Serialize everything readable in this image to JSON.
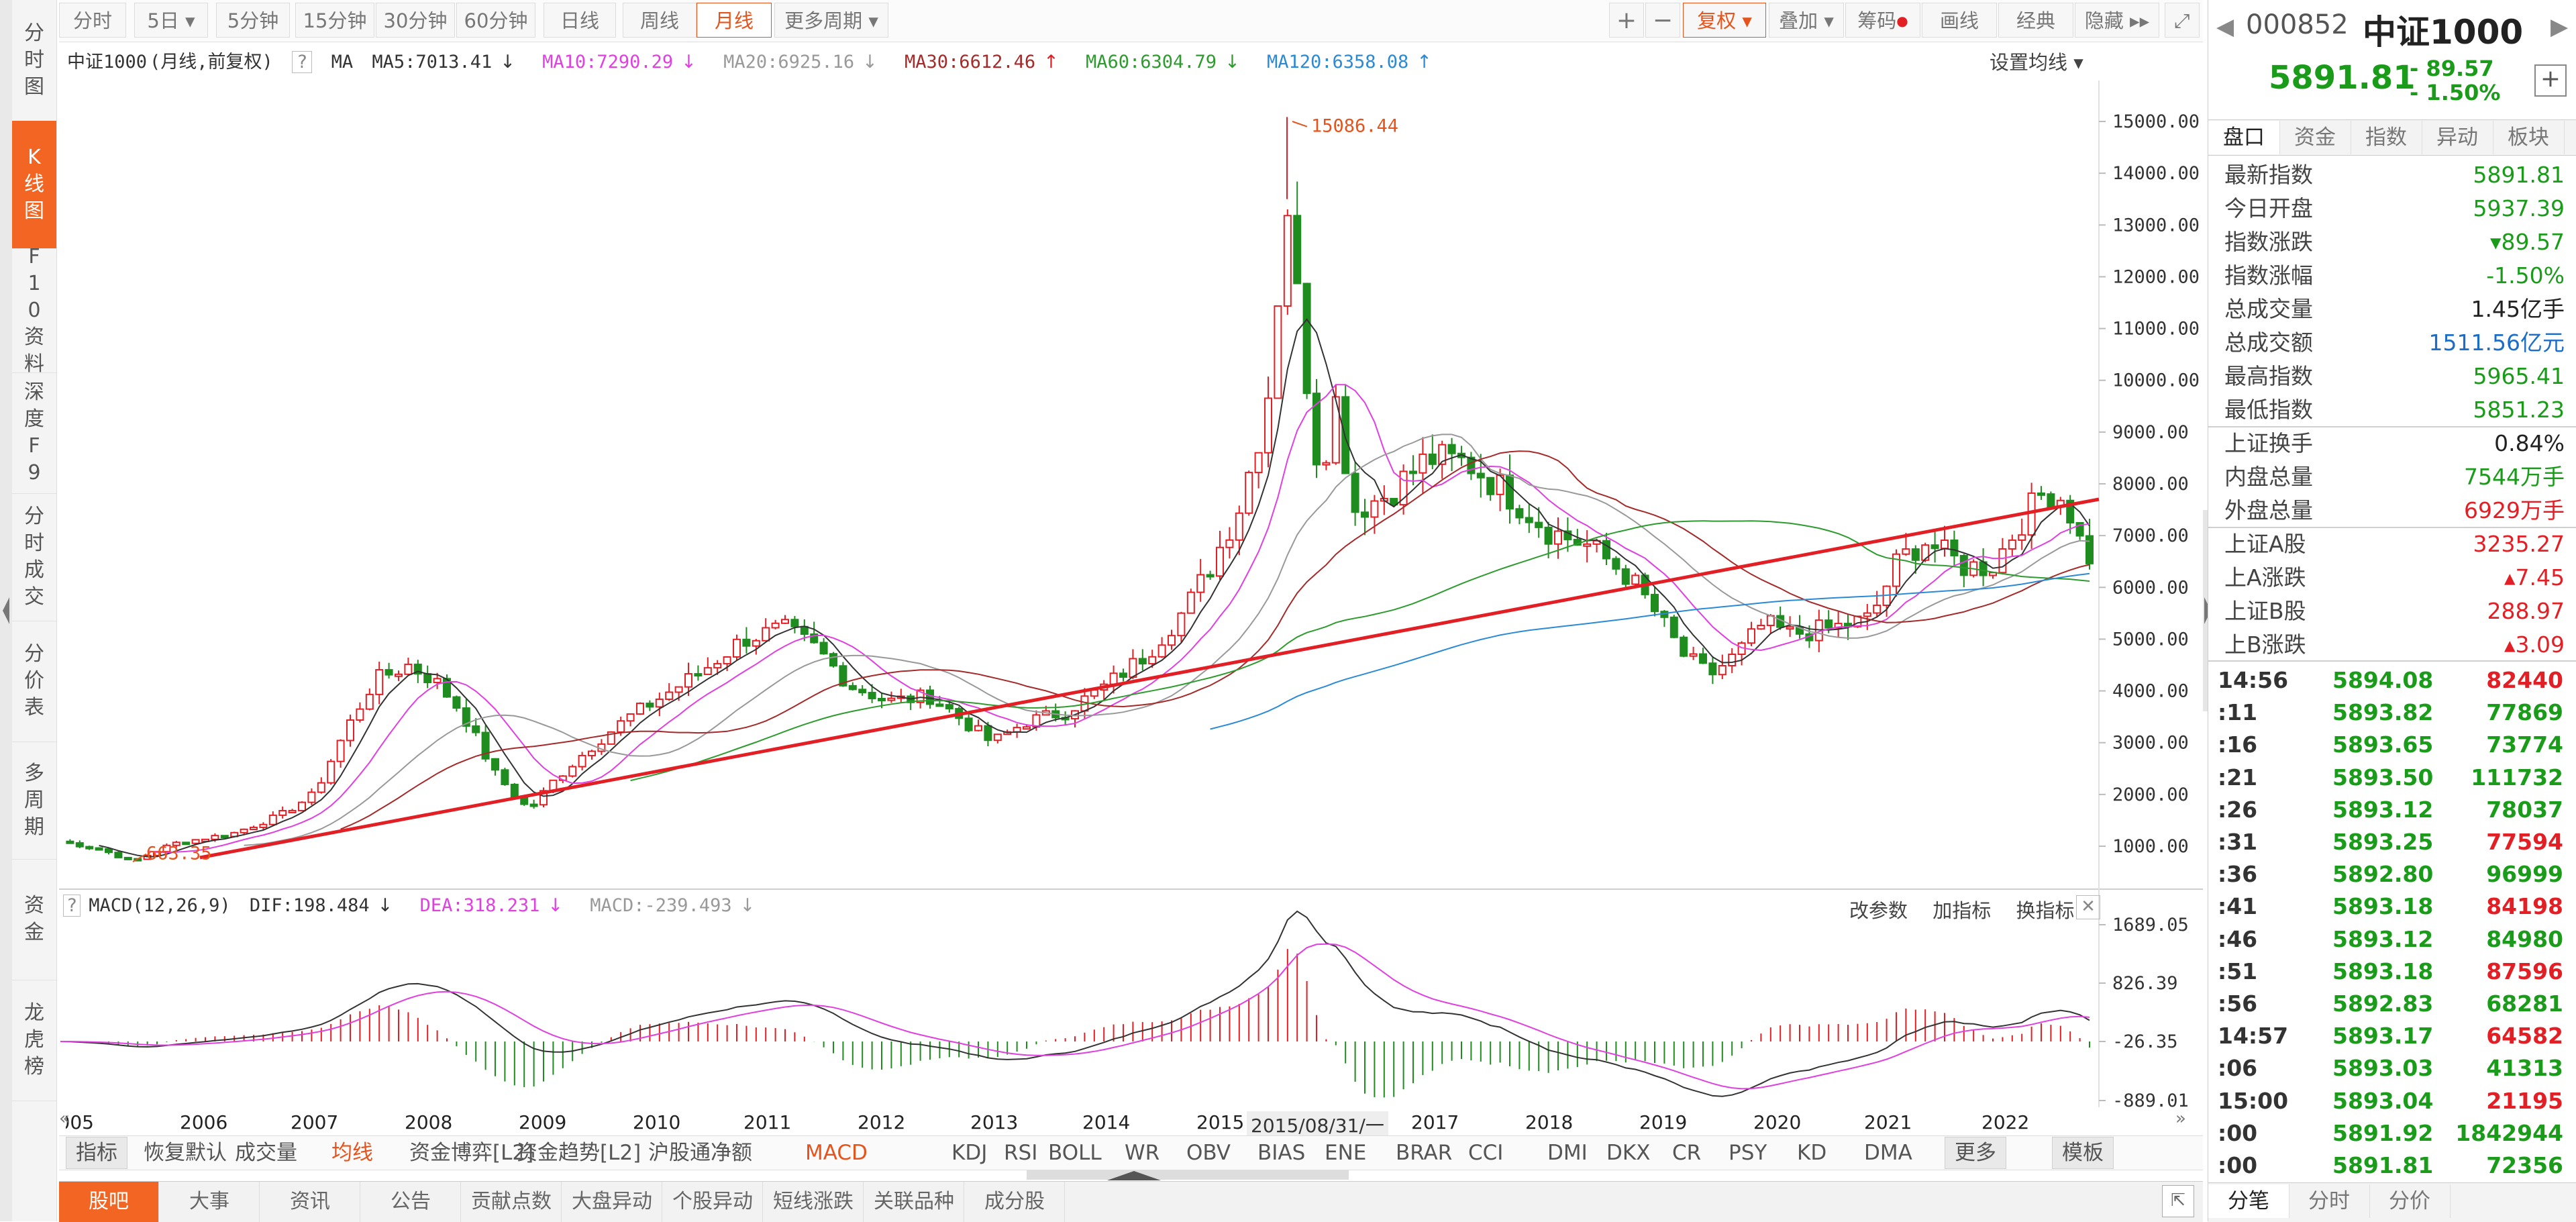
{
  "left_tabs": [
    {
      "label": "分时图",
      "active": false
    },
    {
      "label": "K线图",
      "active": true
    },
    {
      "label": "F10资料",
      "active": false
    },
    {
      "label": "深度F9",
      "active": false
    },
    {
      "label": "分时成交",
      "active": false
    },
    {
      "label": "分价表",
      "active": false
    },
    {
      "label": "多周期",
      "active": false
    },
    {
      "label": "资金",
      "active": false
    },
    {
      "label": "龙虎榜",
      "active": false
    }
  ],
  "toolbar": {
    "periods": [
      "分时",
      "5日",
      "5分钟",
      "15分钟",
      "30分钟",
      "60分钟",
      "日线",
      "周线",
      "月线",
      "更多周期"
    ],
    "active_period": "月线",
    "right": [
      "+",
      "−",
      "复权",
      "叠加",
      "筹码",
      "画线",
      "经典",
      "隐藏"
    ]
  },
  "info": {
    "name": "中证1000",
    "mode": "(月线,前复权)",
    "help": "?",
    "ma_label": "MA",
    "ma5": "MA5:7013.41",
    "ma10": "MA10:7290.29",
    "ma20": "MA20:6925.16",
    "ma30": "MA30:6612.46",
    "ma60": "MA60:6304.79",
    "ma120": "MA120:6358.08",
    "settings": "设置均线"
  },
  "colors": {
    "ma5": "#333333",
    "ma10": "#e040e0",
    "ma20": "#999999",
    "ma30": "#a52a2a",
    "ma60": "#2e9b2e",
    "ma120": "#2b8ad6",
    "up": "#e21f25",
    "down": "#1e8c1e",
    "trend": "#e21f25",
    "accent": "#f26522"
  },
  "chart_data": {
    "type": "candlestick",
    "price_axis_ticks": [
      "15000.00",
      "14000.00",
      "13000.00",
      "12000.00",
      "11000.00",
      "10000.00",
      "9000.00",
      "8000.00",
      "7000.00",
      "6000.00",
      "5000.00",
      "4000.00",
      "3000.00",
      "2000.00",
      "1000.00"
    ],
    "ylim": [
      500,
      15500
    ],
    "annotations": {
      "high": "15086.44",
      "low": "663.35"
    },
    "x_labels": [
      "2005",
      "2006",
      "2007",
      "2008",
      "2009",
      "2010",
      "2011",
      "2012",
      "2013",
      "2014",
      "2015",
      "2015/08/31/一",
      "2017",
      "2018",
      "2019",
      "2020",
      "2021",
      "2022"
    ],
    "macd": {
      "header": "MACD(12,26,9)",
      "dif": "DIF:198.484",
      "dea": "DEA:318.231",
      "macd": "MACD:-239.493",
      "ticks": [
        "1689.05",
        "826.39",
        "-26.35",
        "-889.01"
      ],
      "buttons": [
        "改参数",
        "加指标",
        "换指标"
      ]
    }
  },
  "indicator_tabs": [
    "指标",
    "恢复默认",
    "成交量",
    "均线",
    "资金博弈[L2]",
    "资金趋势[L2]",
    "沪股通净额",
    "MACD",
    "KDJ",
    "RSI",
    "BOLL",
    "WR",
    "OBV",
    "BIAS",
    "ENE",
    "BRAR",
    "CCI",
    "DMI",
    "DKX",
    "CR",
    "PSY",
    "KD",
    "DMA",
    "更多",
    "模板"
  ],
  "bottom_tabs": [
    "股吧",
    "大事",
    "资讯",
    "公告",
    "贡献点数",
    "大盘异动",
    "个股异动",
    "短线涨跌",
    "关联品种",
    "成分股"
  ],
  "quote": {
    "code": "000852",
    "name": "中证1000",
    "price": "5891.81",
    "change": "- 89.57",
    "pct": "- 1.50%",
    "tabs": [
      "盘口",
      "资金",
      "指数",
      "异动",
      "板块"
    ],
    "rows": [
      {
        "k": "最新指数",
        "v": "5891.81",
        "c": "green"
      },
      {
        "k": "今日开盘",
        "v": "5937.39",
        "c": "green"
      },
      {
        "k": "指数涨跌",
        "v": "▾89.57",
        "c": "green"
      },
      {
        "k": "指数涨幅",
        "v": "-1.50%",
        "c": "green"
      },
      {
        "k": "总成交量",
        "v": "1.45亿手",
        "c": "black"
      },
      {
        "k": "总成交额",
        "v": "1511.56亿元",
        "c": "blue"
      },
      {
        "k": "最高指数",
        "v": "5965.41",
        "c": "green"
      },
      {
        "k": "最低指数",
        "v": "5851.23",
        "c": "green"
      },
      {
        "k": "上证换手",
        "v": "0.84%",
        "c": "black"
      },
      {
        "k": "内盘总量",
        "v": "7544万手",
        "c": "green"
      },
      {
        "k": "外盘总量",
        "v": "6929万手",
        "c": "red"
      },
      {
        "k": "上证A股",
        "v": "3235.27",
        "c": "red"
      },
      {
        "k": "上A涨跌",
        "v": "▴7.45",
        "c": "red"
      },
      {
        "k": "上证B股",
        "v": "288.97",
        "c": "red"
      },
      {
        "k": "上B涨跌",
        "v": "▴3.09",
        "c": "red"
      }
    ],
    "ticks": [
      {
        "t": "14:56",
        "p": "5894.08",
        "v": "82440",
        "c": "red"
      },
      {
        "t": ":11",
        "p": "5893.82",
        "v": "77869",
        "c": "green"
      },
      {
        "t": ":16",
        "p": "5893.65",
        "v": "73774",
        "c": "green"
      },
      {
        "t": ":21",
        "p": "5893.50",
        "v": "111732",
        "c": "green"
      },
      {
        "t": ":26",
        "p": "5893.12",
        "v": "78037",
        "c": "green"
      },
      {
        "t": ":31",
        "p": "5893.25",
        "v": "77594",
        "c": "red"
      },
      {
        "t": ":36",
        "p": "5892.80",
        "v": "96999",
        "c": "green"
      },
      {
        "t": ":41",
        "p": "5893.18",
        "v": "84198",
        "c": "red"
      },
      {
        "t": ":46",
        "p": "5893.12",
        "v": "84980",
        "c": "green"
      },
      {
        "t": ":51",
        "p": "5893.18",
        "v": "87596",
        "c": "red"
      },
      {
        "t": ":56",
        "p": "5892.83",
        "v": "68281",
        "c": "green"
      },
      {
        "t": "14:57",
        "p": "5893.17",
        "v": "64582",
        "c": "red"
      },
      {
        "t": ":06",
        "p": "5893.03",
        "v": "41313",
        "c": "green"
      },
      {
        "t": "15:00",
        "p": "5893.04",
        "v": "21195",
        "c": "red"
      },
      {
        "t": ":00",
        "p": "5891.92",
        "v": "1842944",
        "c": "green"
      },
      {
        "t": ":00",
        "p": "5891.81",
        "v": "72356",
        "c": "green"
      }
    ],
    "bottom_tabs": [
      "分笔",
      "分时",
      "分价"
    ]
  }
}
